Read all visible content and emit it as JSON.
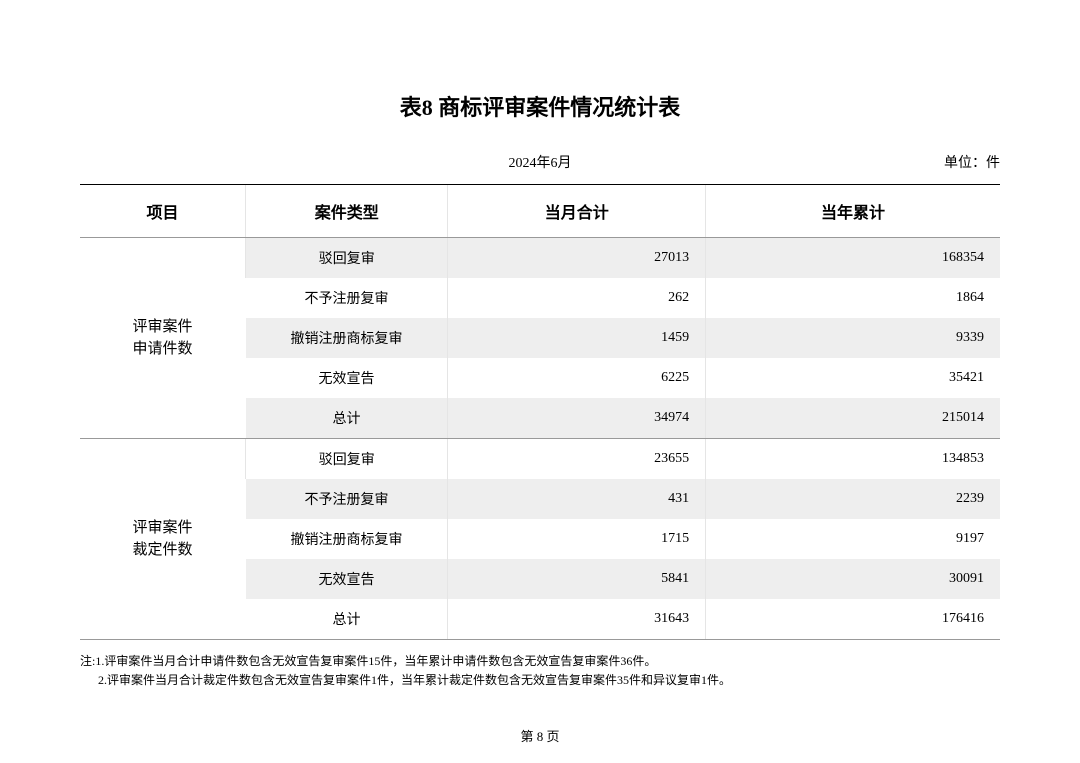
{
  "title": "表8 商标评审案件情况统计表",
  "date": "2024年6月",
  "unit": "单位：件",
  "columns": [
    "项目",
    "案件类型",
    "当月合计",
    "当年累计"
  ],
  "groups": [
    {
      "item_line1": "评审案件",
      "item_line2": "申请件数",
      "rows": [
        {
          "type": "驳回复审",
          "month": "27013",
          "year": "168354",
          "shaded": true
        },
        {
          "type": "不予注册复审",
          "month": "262",
          "year": "1864",
          "shaded": false
        },
        {
          "type": "撤销注册商标复审",
          "month": "1459",
          "year": "9339",
          "shaded": true
        },
        {
          "type": "无效宣告",
          "month": "6225",
          "year": "35421",
          "shaded": false
        },
        {
          "type": "总计",
          "month": "34974",
          "year": "215014",
          "shaded": true
        }
      ]
    },
    {
      "item_line1": "评审案件",
      "item_line2": "裁定件数",
      "rows": [
        {
          "type": "驳回复审",
          "month": "23655",
          "year": "134853",
          "shaded": false
        },
        {
          "type": "不予注册复审",
          "month": "431",
          "year": "2239",
          "shaded": true
        },
        {
          "type": "撤销注册商标复审",
          "month": "1715",
          "year": "9197",
          "shaded": false
        },
        {
          "type": "无效宣告",
          "month": "5841",
          "year": "30091",
          "shaded": true
        },
        {
          "type": "总计",
          "month": "31643",
          "year": "176416",
          "shaded": false
        }
      ]
    }
  ],
  "note1": "注:1.评审案件当月合计申请件数包含无效宣告复审案件15件，当年累计申请件数包含无效宣告复审案件36件。",
  "note2": "2.评审案件当月合计裁定件数包含无效宣告复审案件1件，当年累计裁定件数包含无效宣告复审案件35件和异议复审1件。",
  "page": "第 8 页"
}
